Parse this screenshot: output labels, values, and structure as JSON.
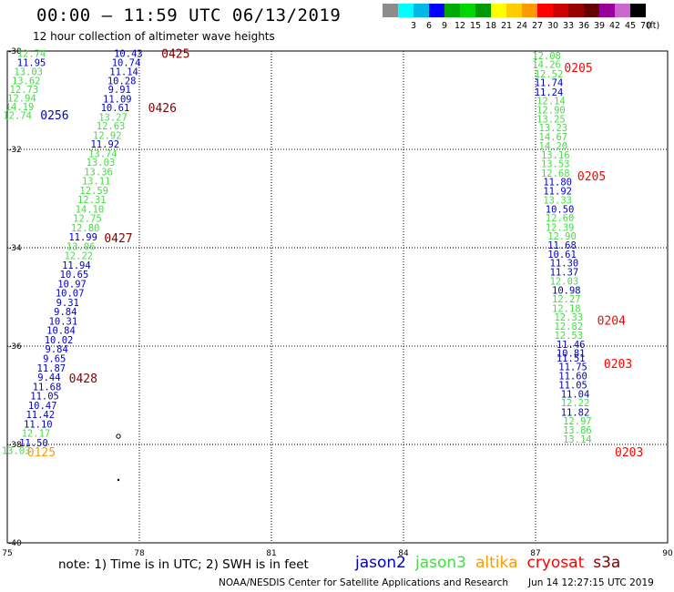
{
  "header": {
    "title": "00:00 – 11:59 UTC 06/13/2019",
    "subtitle": "12 hour collection of altimeter wave heights"
  },
  "legend": {
    "unit_label": "(ft)",
    "bins": [
      {
        "label": "",
        "color": "#8c8c8c"
      },
      {
        "label": "3",
        "color": "#00ffff"
      },
      {
        "label": "6",
        "color": "#00b8e6"
      },
      {
        "label": "9",
        "color": "#0000ff"
      },
      {
        "label": "12",
        "color": "#00aa00"
      },
      {
        "label": "15",
        "color": "#00d600"
      },
      {
        "label": "18",
        "color": "#009900"
      },
      {
        "label": "21",
        "color": "#ffff00"
      },
      {
        "label": "24",
        "color": "#ffcc00"
      },
      {
        "label": "27",
        "color": "#ff9900"
      },
      {
        "label": "30",
        "color": "#ff0000"
      },
      {
        "label": "33",
        "color": "#cc0000"
      },
      {
        "label": "36",
        "color": "#990000"
      },
      {
        "label": "39",
        "color": "#660000"
      },
      {
        "label": "42",
        "color": "#990099"
      },
      {
        "label": "45",
        "color": "#cc66cc"
      },
      {
        "label": "70",
        "color": "#000000"
      }
    ]
  },
  "axes": {
    "lon_labels": [
      "75",
      "78",
      "81",
      "84",
      "87",
      "90"
    ],
    "lat_labels": [
      "-30",
      "-32",
      "-34",
      "-36",
      "-38",
      "-40"
    ]
  },
  "colors": {
    "jason2": "#0000c8",
    "jason3": "#44dd44",
    "altika": "#ff9900",
    "cryosat": "#ff0000",
    "s3a": "#800000"
  },
  "tracks": [
    {
      "sat": "jason3",
      "lon": 75.55,
      "lat": -30.05,
      "v": "12.74"
    },
    {
      "sat": "jason2",
      "lon": 75.55,
      "lat": -30.23,
      "v": "11.95"
    },
    {
      "sat": "jason3",
      "lon": 75.48,
      "lat": -30.42,
      "v": "13.03"
    },
    {
      "sat": "jason3",
      "lon": 75.43,
      "lat": -30.6,
      "v": "13.62"
    },
    {
      "sat": "jason3",
      "lon": 75.38,
      "lat": -30.78,
      "v": "12.73"
    },
    {
      "sat": "jason3",
      "lon": 75.33,
      "lat": -30.95,
      "v": "12.94"
    },
    {
      "sat": "jason3",
      "lon": 75.28,
      "lat": -31.13,
      "v": "14.19"
    },
    {
      "sat": "jason3",
      "lon": 75.23,
      "lat": -31.31,
      "v": "12.74"
    },
    {
      "sat": "jason2",
      "lon": 77.75,
      "lat": -30.05,
      "v": "10.43"
    },
    {
      "sat": "jason2",
      "lon": 77.7,
      "lat": -30.23,
      "v": "10.74"
    },
    {
      "sat": "jason2",
      "lon": 77.65,
      "lat": -30.42,
      "v": "11.14"
    },
    {
      "sat": "jason2",
      "lon": 77.6,
      "lat": -30.6,
      "v": "10.28"
    },
    {
      "sat": "jason2",
      "lon": 77.55,
      "lat": -30.78,
      "v": "9.91"
    },
    {
      "sat": "jason2",
      "lon": 77.5,
      "lat": -30.97,
      "v": "11.09"
    },
    {
      "sat": "jason2",
      "lon": 77.45,
      "lat": -31.15,
      "v": "10.61"
    },
    {
      "sat": "jason3",
      "lon": 77.4,
      "lat": -31.34,
      "v": "13.27"
    },
    {
      "sat": "jason3",
      "lon": 77.35,
      "lat": -31.52,
      "v": "12.63"
    },
    {
      "sat": "jason3",
      "lon": 77.27,
      "lat": -31.71,
      "v": "12.92"
    },
    {
      "sat": "jason2",
      "lon": 77.22,
      "lat": -31.89,
      "v": "11.92"
    },
    {
      "sat": "jason3",
      "lon": 77.17,
      "lat": -32.08,
      "v": "13.74"
    },
    {
      "sat": "jason3",
      "lon": 77.12,
      "lat": -32.26,
      "v": "13.03"
    },
    {
      "sat": "jason3",
      "lon": 77.07,
      "lat": -32.45,
      "v": "13.36"
    },
    {
      "sat": "jason3",
      "lon": 77.02,
      "lat": -32.64,
      "v": "13.11"
    },
    {
      "sat": "jason3",
      "lon": 76.97,
      "lat": -32.83,
      "v": "12.59"
    },
    {
      "sat": "jason3",
      "lon": 76.92,
      "lat": -33.02,
      "v": "12.31"
    },
    {
      "sat": "jason3",
      "lon": 76.87,
      "lat": -33.21,
      "v": "14.10"
    },
    {
      "sat": "jason3",
      "lon": 76.82,
      "lat": -33.4,
      "v": "12.75"
    },
    {
      "sat": "jason3",
      "lon": 76.77,
      "lat": -33.59,
      "v": "12.80"
    },
    {
      "sat": "jason2",
      "lon": 76.72,
      "lat": -33.78,
      "v": "11.99"
    },
    {
      "sat": "jason3",
      "lon": 76.67,
      "lat": -33.97,
      "v": "13.06"
    },
    {
      "sat": "jason3",
      "lon": 76.62,
      "lat": -34.16,
      "v": "12.22"
    },
    {
      "sat": "jason2",
      "lon": 76.57,
      "lat": -34.35,
      "v": "11.94"
    },
    {
      "sat": "jason2",
      "lon": 76.52,
      "lat": -34.54,
      "v": "10.65"
    },
    {
      "sat": "jason2",
      "lon": 76.47,
      "lat": -34.73,
      "v": "10.97"
    },
    {
      "sat": "jason2",
      "lon": 76.42,
      "lat": -34.92,
      "v": "10.07"
    },
    {
      "sat": "jason2",
      "lon": 76.37,
      "lat": -35.11,
      "v": "9.31"
    },
    {
      "sat": "jason2",
      "lon": 76.32,
      "lat": -35.3,
      "v": "9.84"
    },
    {
      "sat": "jason2",
      "lon": 76.27,
      "lat": -35.49,
      "v": "10.31"
    },
    {
      "sat": "jason2",
      "lon": 76.22,
      "lat": -35.68,
      "v": "10.84"
    },
    {
      "sat": "jason2",
      "lon": 76.17,
      "lat": -35.87,
      "v": "10.02"
    },
    {
      "sat": "jason2",
      "lon": 76.12,
      "lat": -36.06,
      "v": "9.84"
    },
    {
      "sat": "jason2",
      "lon": 76.07,
      "lat": -36.25,
      "v": "9.65"
    },
    {
      "sat": "jason2",
      "lon": 76.0,
      "lat": -36.44,
      "v": "11.87"
    },
    {
      "sat": "jason2",
      "lon": 75.95,
      "lat": -36.63,
      "v": "9.44"
    },
    {
      "sat": "jason2",
      "lon": 75.9,
      "lat": -36.82,
      "v": "11.68"
    },
    {
      "sat": "jason2",
      "lon": 75.85,
      "lat": -37.01,
      "v": "11.05"
    },
    {
      "sat": "jason2",
      "lon": 75.8,
      "lat": -37.2,
      "v": "10.47"
    },
    {
      "sat": "jason2",
      "lon": 75.75,
      "lat": -37.39,
      "v": "11.42"
    },
    {
      "sat": "jason2",
      "lon": 75.7,
      "lat": -37.58,
      "v": "11.10"
    },
    {
      "sat": "jason3",
      "lon": 75.65,
      "lat": -37.77,
      "v": "12.17"
    },
    {
      "sat": "jason2",
      "lon": 75.6,
      "lat": -37.96,
      "v": "11.50"
    },
    {
      "sat": "jason3",
      "lon": 75.2,
      "lat": -38.12,
      "v": "13.03"
    },
    {
      "sat": "jason3",
      "lon": 87.25,
      "lat": -30.09,
      "v": "12.08"
    },
    {
      "sat": "jason3",
      "lon": 87.25,
      "lat": -30.27,
      "v": "14.26"
    },
    {
      "sat": "jason3",
      "lon": 87.3,
      "lat": -30.46,
      "v": "12.52"
    },
    {
      "sat": "jason2",
      "lon": 87.3,
      "lat": -30.64,
      "v": "11.74"
    },
    {
      "sat": "jason2",
      "lon": 87.3,
      "lat": -30.83,
      "v": "11.24"
    },
    {
      "sat": "jason3",
      "lon": 87.35,
      "lat": -31.01,
      "v": "12.14"
    },
    {
      "sat": "jason3",
      "lon": 87.35,
      "lat": -31.19,
      "v": "12.90"
    },
    {
      "sat": "jason3",
      "lon": 87.35,
      "lat": -31.38,
      "v": "13.25"
    },
    {
      "sat": "jason3",
      "lon": 87.4,
      "lat": -31.56,
      "v": "13.23"
    },
    {
      "sat": "jason3",
      "lon": 87.4,
      "lat": -31.74,
      "v": "14.67"
    },
    {
      "sat": "jason3",
      "lon": 87.4,
      "lat": -31.93,
      "v": "14.20"
    },
    {
      "sat": "jason3",
      "lon": 87.45,
      "lat": -32.11,
      "v": "13.16"
    },
    {
      "sat": "jason3",
      "lon": 87.45,
      "lat": -32.29,
      "v": "13.53"
    },
    {
      "sat": "jason3",
      "lon": 87.45,
      "lat": -32.48,
      "v": "12.68"
    },
    {
      "sat": "jason2",
      "lon": 87.5,
      "lat": -32.66,
      "v": "11.80"
    },
    {
      "sat": "jason2",
      "lon": 87.5,
      "lat": -32.84,
      "v": "11.92"
    },
    {
      "sat": "jason3",
      "lon": 87.5,
      "lat": -33.03,
      "v": "13.33"
    },
    {
      "sat": "jason2",
      "lon": 87.55,
      "lat": -33.21,
      "v": "10.50"
    },
    {
      "sat": "jason3",
      "lon": 87.55,
      "lat": -33.39,
      "v": "12.60"
    },
    {
      "sat": "jason3",
      "lon": 87.55,
      "lat": -33.58,
      "v": "12.39"
    },
    {
      "sat": "jason3",
      "lon": 87.6,
      "lat": -33.76,
      "v": "12.90"
    },
    {
      "sat": "jason2",
      "lon": 87.6,
      "lat": -33.94,
      "v": "11.68"
    },
    {
      "sat": "jason2",
      "lon": 87.6,
      "lat": -34.13,
      "v": "10.61"
    },
    {
      "sat": "jason2",
      "lon": 87.65,
      "lat": -34.31,
      "v": "11.30"
    },
    {
      "sat": "jason2",
      "lon": 87.65,
      "lat": -34.49,
      "v": "11.37"
    },
    {
      "sat": "jason3",
      "lon": 87.65,
      "lat": -34.68,
      "v": "12.03"
    },
    {
      "sat": "jason2",
      "lon": 87.7,
      "lat": -34.86,
      "v": "10.98"
    },
    {
      "sat": "jason3",
      "lon": 87.7,
      "lat": -35.04,
      "v": "12.27"
    },
    {
      "sat": "jason3",
      "lon": 87.7,
      "lat": -35.23,
      "v": "12.18"
    },
    {
      "sat": "jason3",
      "lon": 87.75,
      "lat": -35.41,
      "v": "12.33"
    },
    {
      "sat": "jason3",
      "lon": 87.75,
      "lat": -35.59,
      "v": "12.82"
    },
    {
      "sat": "jason3",
      "lon": 87.75,
      "lat": -35.78,
      "v": "12.53"
    },
    {
      "sat": "jason2",
      "lon": 87.8,
      "lat": -35.96,
      "v": "11.46"
    },
    {
      "sat": "jason2",
      "lon": 87.8,
      "lat": -36.14,
      "v": "10.81"
    },
    {
      "sat": "jason2",
      "lon": 87.8,
      "lat": -36.24,
      "v": "11.51"
    },
    {
      "sat": "jason2",
      "lon": 87.85,
      "lat": -36.42,
      "v": "11.75"
    },
    {
      "sat": "jason2",
      "lon": 87.85,
      "lat": -36.6,
      "v": "11.60"
    },
    {
      "sat": "jason2",
      "lon": 87.85,
      "lat": -36.79,
      "v": "11.05"
    },
    {
      "sat": "jason2",
      "lon": 87.9,
      "lat": -36.97,
      "v": "11.04"
    },
    {
      "sat": "jason3",
      "lon": 87.9,
      "lat": -37.15,
      "v": "12.22"
    },
    {
      "sat": "jason2",
      "lon": 87.9,
      "lat": -37.34,
      "v": "11.82"
    },
    {
      "sat": "jason3",
      "lon": 87.95,
      "lat": -37.52,
      "v": "12.97"
    },
    {
      "sat": "jason3",
      "lon": 87.95,
      "lat": -37.7,
      "v": "13.86"
    },
    {
      "sat": "jason3",
      "lon": 87.95,
      "lat": -37.89,
      "v": "13.14"
    }
  ],
  "pass_times": [
    {
      "sat": "s3a",
      "lon": 78.5,
      "lat": -30.05,
      "t": "0425"
    },
    {
      "sat": "s3a",
      "lon": 78.2,
      "lat": -31.15,
      "t": "0426"
    },
    {
      "sat": "s3a",
      "lon": 77.2,
      "lat": -33.8,
      "t": "0427"
    },
    {
      "sat": "s3a",
      "lon": 76.4,
      "lat": -36.65,
      "t": "0428"
    },
    {
      "sat": "jason2",
      "lon": 75.75,
      "lat": -31.3,
      "t": "0256"
    },
    {
      "sat": "altika",
      "lon": 75.45,
      "lat": -38.15,
      "t": "0125"
    },
    {
      "sat": "cryosat",
      "lon": 87.65,
      "lat": -30.33,
      "t": "0205"
    },
    {
      "sat": "cryosat",
      "lon": 87.95,
      "lat": -32.54,
      "t": "0205"
    },
    {
      "sat": "cryosat",
      "lon": 88.4,
      "lat": -35.47,
      "t": "0204"
    },
    {
      "sat": "cryosat",
      "lon": 88.55,
      "lat": -36.35,
      "t": "0203"
    },
    {
      "sat": "cryosat",
      "lon": 88.8,
      "lat": -38.15,
      "t": "0203"
    }
  ],
  "footer": {
    "note": "note:  1) Time is in UTC;  2) SWH is in feet",
    "satellites": [
      {
        "key": "jason2",
        "label": "jason2"
      },
      {
        "key": "jason3",
        "label": "jason3"
      },
      {
        "key": "altika",
        "label": "altika"
      },
      {
        "key": "cryosat",
        "label": "cryosat"
      },
      {
        "key": "s3a",
        "label": "s3a"
      }
    ],
    "credit": "NOAA/NESDIS Center for Satellite Applications and Research",
    "generated": "Jun 14 12:27:15 UTC 2019"
  }
}
